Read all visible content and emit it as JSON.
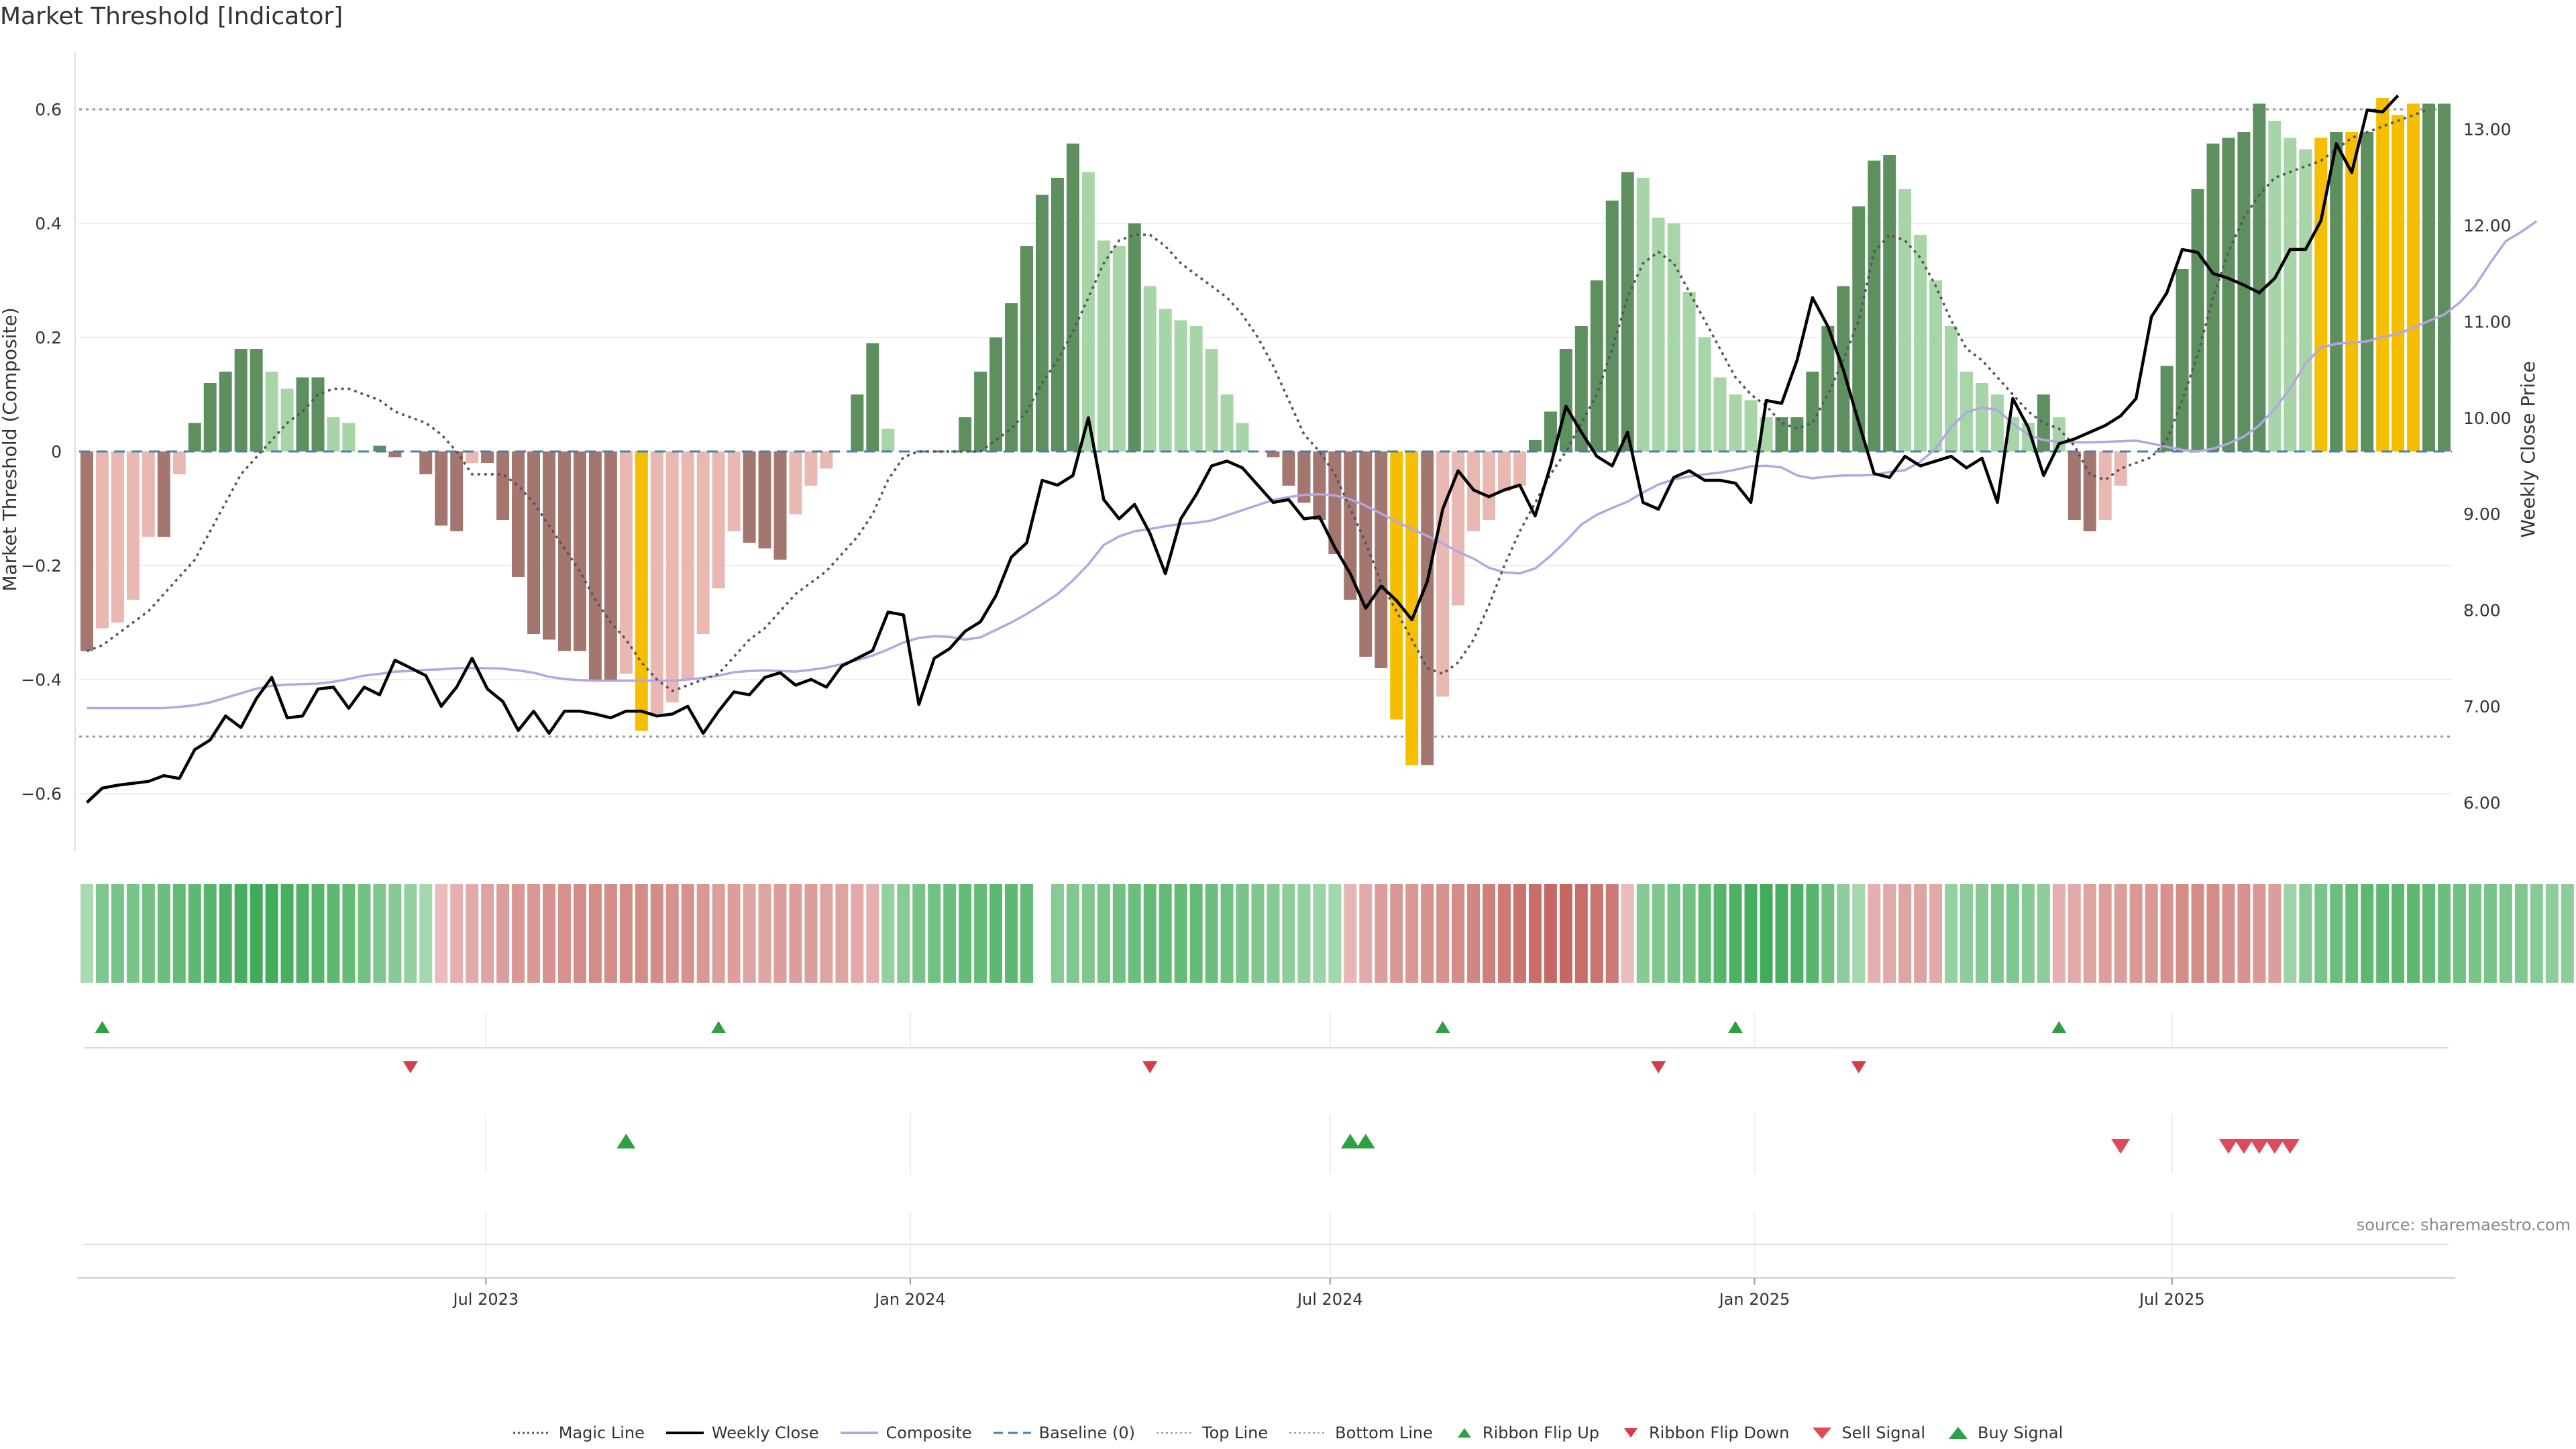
{
  "title": "Market Threshold [Indicator]",
  "source": "source: sharemaestro.com",
  "colors": {
    "strong_pos": "#5e8f5e",
    "weak_pos": "#a8d5a8",
    "strong_neg": "#a37670",
    "weak_neg": "#e9b8b3",
    "signal": "#f5be00",
    "close": "#000000",
    "composite": "#b3a7e0",
    "magic": "#555555",
    "baseline": "#4a7fa7",
    "buy": "#2ea043",
    "sell": "#d73a49"
  },
  "legend": [
    {
      "label": "Magic Line",
      "icon": "dotted-line"
    },
    {
      "label": "Weekly Close",
      "icon": "solid-line"
    },
    {
      "label": "Composite",
      "icon": "composite-line"
    },
    {
      "label": "Baseline (0)",
      "icon": "dashed-line"
    },
    {
      "label": "Top Line",
      "icon": "light-dotted-line"
    },
    {
      "label": "Bottom Line",
      "icon": "light-dotted-line"
    },
    {
      "label": "Ribbon Flip Up",
      "icon": "triangle-up-icon"
    },
    {
      "label": "Ribbon Flip Down",
      "icon": "triangle-down-icon"
    },
    {
      "label": "Sell Signal",
      "icon": "sell-triangle-icon"
    },
    {
      "label": "Buy Signal",
      "icon": "buy-triangle-icon"
    }
  ],
  "chart_data": {
    "type": "bar",
    "ylabel": "Market Threshold (Composite)",
    "y2label": "Weekly Close Price",
    "ylim": [
      -0.7,
      0.7
    ],
    "y2lim": [
      5.5,
      13.8
    ],
    "yticks": [
      "−0.6",
      "−0.4",
      "−0.2",
      "0",
      "0.2",
      "0.4",
      "0.6"
    ],
    "y2ticks": [
      "6.00",
      "7.00",
      "8.00",
      "9.00",
      "10.00",
      "11.00",
      "12.00",
      "13.00"
    ],
    "top_line": 0.6,
    "bottom_line": -0.5,
    "baseline": 0,
    "x_start": "2023-01-09",
    "x_end": "2025-10-27",
    "xticks": [
      {
        "label": "Jul 2023",
        "date": "2023-07-01"
      },
      {
        "label": "Jan 2024",
        "date": "2024-01-01"
      },
      {
        "label": "Jul 2024",
        "date": "2024-07-01"
      },
      {
        "label": "Jan 2025",
        "date": "2025-01-01"
      },
      {
        "label": "Jul 2025",
        "date": "2025-07-01"
      }
    ],
    "composite_bars": [
      -0.35,
      -0.31,
      -0.3,
      -0.26,
      -0.15,
      -0.15,
      -0.04,
      0.05,
      0.12,
      0.14,
      0.18,
      0.18,
      0.14,
      0.11,
      0.13,
      0.13,
      0.06,
      0.05,
      0.0,
      0.01,
      -0.01,
      0.0,
      -0.04,
      -0.13,
      -0.14,
      -0.02,
      -0.02,
      -0.12,
      -0.22,
      -0.32,
      -0.33,
      -0.35,
      -0.35,
      -0.4,
      -0.4,
      -0.39,
      -0.49,
      -0.46,
      -0.44,
      -0.4,
      -0.32,
      -0.24,
      -0.14,
      -0.16,
      -0.17,
      -0.19,
      -0.11,
      -0.06,
      -0.03,
      0.0,
      0.1,
      0.19,
      0.04,
      0.0,
      0.0,
      0.0,
      0.0,
      0.06,
      0.14,
      0.2,
      0.26,
      0.36,
      0.45,
      0.48,
      0.54,
      0.49,
      0.37,
      0.36,
      0.4,
      0.29,
      0.25,
      0.23,
      0.22,
      0.18,
      0.1,
      0.05,
      0.0,
      -0.01,
      -0.06,
      -0.09,
      -0.12,
      -0.18,
      -0.26,
      -0.36,
      -0.38,
      -0.47,
      -0.55,
      -0.55,
      -0.43,
      -0.27,
      -0.14,
      -0.12,
      -0.07,
      -0.06,
      0.02,
      0.07,
      0.18,
      0.22,
      0.3,
      0.44,
      0.49,
      0.48,
      0.41,
      0.4,
      0.28,
      0.2,
      0.13,
      0.1,
      0.09,
      0.06,
      0.06,
      0.06,
      0.14,
      0.22,
      0.29,
      0.43,
      0.51,
      0.52,
      0.46,
      0.38,
      0.3,
      0.22,
      0.14,
      0.12,
      0.1,
      0.06,
      0.05,
      0.1,
      0.06,
      -0.12,
      -0.14,
      -0.12,
      -0.06,
      0.0,
      0.0,
      0.15,
      0.32,
      0.46,
      0.54,
      0.55,
      0.56,
      0.61,
      0.58,
      0.55,
      0.53,
      0.55,
      0.56,
      0.56,
      0.56,
      0.62,
      0.59,
      0.61,
      0.61,
      0.61
    ],
    "signal_bars": [
      36,
      85,
      86,
      145,
      147,
      149,
      150,
      151
    ],
    "weekly_close": [
      6.0,
      6.15,
      6.18,
      6.2,
      6.22,
      6.28,
      6.25,
      6.55,
      6.65,
      6.9,
      6.78,
      7.08,
      7.3,
      6.88,
      6.9,
      7.18,
      7.2,
      6.98,
      7.2,
      7.12,
      7.48,
      7.4,
      7.32,
      7.0,
      7.2,
      7.5,
      7.18,
      7.05,
      6.75,
      6.95,
      6.72,
      6.95,
      6.95,
      6.92,
      6.88,
      6.95,
      6.95,
      6.9,
      6.92,
      7.0,
      6.72,
      6.95,
      7.15,
      7.12,
      7.3,
      7.35,
      7.22,
      7.28,
      7.2,
      7.42,
      7.5,
      7.58,
      7.98,
      7.95,
      7.02,
      7.5,
      7.6,
      7.78,
      7.88,
      8.15,
      8.55,
      8.7,
      9.35,
      9.3,
      9.4,
      10.0,
      9.15,
      8.95,
      9.1,
      8.8,
      8.38,
      8.95,
      9.2,
      9.5,
      9.55,
      9.48,
      9.3,
      9.12,
      9.15,
      8.95,
      8.97,
      8.65,
      8.38,
      8.02,
      8.25,
      8.1,
      7.9,
      8.3,
      9.05,
      9.45,
      9.25,
      9.18,
      9.25,
      9.3,
      8.98,
      9.5,
      10.12,
      9.85,
      9.6,
      9.5,
      9.85,
      9.12,
      9.05,
      9.38,
      9.45,
      9.35,
      9.35,
      9.32,
      9.12,
      10.18,
      10.15,
      10.6,
      11.25,
      10.95,
      10.5,
      9.95,
      9.42,
      9.38,
      9.6,
      9.5,
      9.55,
      9.6,
      9.48,
      9.58,
      9.12,
      10.2,
      9.9,
      9.4,
      9.73,
      9.78,
      9.85,
      9.92,
      10.02,
      10.2,
      11.05,
      11.3,
      11.75,
      11.72,
      11.5,
      11.45,
      11.38,
      11.3,
      11.45,
      11.75,
      11.75,
      12.05,
      12.85,
      12.55,
      13.2,
      13.18,
      13.35
    ],
    "composite_line": [
      -0.45,
      -0.45,
      -0.45,
      -0.45,
      -0.45,
      -0.45,
      -0.448,
      -0.445,
      -0.44,
      -0.432,
      -0.424,
      -0.416,
      -0.411,
      -0.409,
      -0.408,
      -0.407,
      -0.404,
      -0.399,
      -0.393,
      -0.39,
      -0.386,
      -0.385,
      -0.383,
      -0.382,
      -0.38,
      -0.38,
      -0.38,
      -0.381,
      -0.384,
      -0.388,
      -0.395,
      -0.399,
      -0.401,
      -0.402,
      -0.402,
      -0.402,
      -0.402,
      -0.402,
      -0.402,
      -0.4,
      -0.397,
      -0.393,
      -0.387,
      -0.385,
      -0.384,
      -0.385,
      -0.386,
      -0.383,
      -0.379,
      -0.373,
      -0.366,
      -0.358,
      -0.347,
      -0.335,
      -0.327,
      -0.324,
      -0.325,
      -0.33,
      -0.326,
      -0.313,
      -0.3,
      -0.285,
      -0.268,
      -0.25,
      -0.226,
      -0.198,
      -0.164,
      -0.149,
      -0.14,
      -0.136,
      -0.131,
      -0.127,
      -0.125,
      -0.121,
      -0.112,
      -0.103,
      -0.094,
      -0.085,
      -0.08,
      -0.076,
      -0.075,
      -0.077,
      -0.084,
      -0.095,
      -0.109,
      -0.123,
      -0.136,
      -0.148,
      -0.161,
      -0.176,
      -0.188,
      -0.204,
      -0.212,
      -0.214,
      -0.205,
      -0.183,
      -0.157,
      -0.128,
      -0.111,
      -0.099,
      -0.088,
      -0.072,
      -0.058,
      -0.049,
      -0.044,
      -0.04,
      -0.037,
      -0.032,
      -0.026,
      -0.025,
      -0.028,
      -0.042,
      -0.047,
      -0.044,
      -0.042,
      -0.042,
      -0.041,
      -0.036,
      -0.033,
      -0.018,
      0.005,
      0.043,
      0.069,
      0.077,
      0.073,
      0.049,
      0.029,
      0.02,
      0.017,
      0.016,
      0.016,
      0.017,
      0.018,
      0.019,
      0.014,
      0.008,
      0.003,
      0.0,
      0.005,
      0.014,
      0.026,
      0.046,
      0.075,
      0.11,
      0.154,
      0.182,
      0.189,
      0.191,
      0.193,
      0.201,
      0.206,
      0.217,
      0.229,
      0.24,
      0.261,
      0.29,
      0.331,
      0.369,
      0.385,
      0.404
    ],
    "magic_line": [
      -0.35,
      -0.34,
      -0.32,
      -0.3,
      -0.28,
      -0.25,
      -0.22,
      -0.19,
      -0.14,
      -0.09,
      -0.04,
      -0.01,
      0.02,
      0.05,
      0.07,
      0.1,
      0.11,
      0.11,
      0.1,
      0.09,
      0.07,
      0.06,
      0.05,
      0.03,
      0.0,
      -0.04,
      -0.04,
      -0.04,
      -0.06,
      -0.09,
      -0.13,
      -0.17,
      -0.21,
      -0.26,
      -0.3,
      -0.33,
      -0.37,
      -0.4,
      -0.42,
      -0.41,
      -0.4,
      -0.39,
      -0.36,
      -0.33,
      -0.31,
      -0.28,
      -0.25,
      -0.23,
      -0.21,
      -0.18,
      -0.15,
      -0.11,
      -0.05,
      -0.01,
      0.0,
      0.0,
      0.0,
      0.0,
      0.0,
      0.02,
      0.04,
      0.07,
      0.12,
      0.16,
      0.21,
      0.27,
      0.33,
      0.37,
      0.38,
      0.38,
      0.36,
      0.33,
      0.31,
      0.29,
      0.27,
      0.24,
      0.2,
      0.15,
      0.09,
      0.03,
      0.0,
      -0.04,
      -0.1,
      -0.16,
      -0.23,
      -0.28,
      -0.33,
      -0.38,
      -0.39,
      -0.37,
      -0.33,
      -0.27,
      -0.2,
      -0.14,
      -0.09,
      -0.04,
      0.0,
      0.05,
      0.1,
      0.18,
      0.27,
      0.33,
      0.35,
      0.33,
      0.28,
      0.23,
      0.18,
      0.13,
      0.1,
      0.08,
      0.05,
      0.04,
      0.05,
      0.1,
      0.16,
      0.23,
      0.35,
      0.38,
      0.37,
      0.34,
      0.29,
      0.23,
      0.18,
      0.16,
      0.13,
      0.1,
      0.07,
      0.05,
      0.04,
      0.01,
      -0.04,
      -0.05,
      -0.03,
      -0.02,
      -0.01,
      0.02,
      0.09,
      0.17,
      0.27,
      0.35,
      0.41,
      0.45,
      0.48,
      0.49,
      0.5,
      0.51,
      0.53,
      0.55,
      0.56,
      0.57,
      0.58,
      0.59,
      0.6
    ],
    "ribbon_intensity": [
      0.2,
      0.5,
      0.55,
      0.55,
      0.6,
      0.65,
      0.7,
      0.75,
      0.8,
      0.85,
      0.9,
      0.95,
      0.95,
      0.9,
      0.85,
      0.8,
      0.75,
      0.7,
      0.6,
      0.5,
      0.45,
      0.35,
      0.25,
      -0.2,
      -0.3,
      -0.35,
      -0.4,
      -0.45,
      -0.5,
      -0.5,
      -0.55,
      -0.55,
      -0.6,
      -0.6,
      -0.6,
      -0.6,
      -0.6,
      -0.6,
      -0.55,
      -0.55,
      -0.5,
      -0.45,
      -0.45,
      -0.4,
      -0.4,
      -0.45,
      -0.45,
      -0.45,
      -0.4,
      -0.4,
      -0.35,
      -0.3,
      0.35,
      0.45,
      0.55,
      0.6,
      0.65,
      0.7,
      0.7,
      0.75,
      0.75,
      0.7,
      null,
      0.45,
      0.5,
      0.5,
      0.55,
      0.6,
      0.65,
      0.7,
      0.7,
      0.7,
      0.7,
      0.65,
      0.6,
      0.55,
      0.5,
      0.45,
      0.4,
      0.35,
      0.3,
      0.25,
      -0.25,
      -0.35,
      -0.45,
      -0.5,
      -0.5,
      -0.55,
      -0.55,
      -0.6,
      -0.65,
      -0.7,
      -0.75,
      -0.8,
      -0.85,
      -0.9,
      -0.9,
      -0.85,
      -0.8,
      -0.75,
      -0.2,
      0.45,
      0.5,
      0.55,
      0.6,
      0.7,
      0.8,
      0.85,
      0.9,
      0.95,
      0.9,
      0.85,
      0.8,
      0.6,
      0.4,
      0.25,
      -0.3,
      -0.35,
      -0.4,
      -0.4,
      -0.35,
      0.35,
      0.4,
      0.45,
      0.5,
      0.5,
      0.45,
      0.4,
      -0.3,
      -0.35,
      -0.4,
      -0.45,
      -0.45,
      -0.5,
      -0.5,
      -0.55,
      -0.6,
      -0.6,
      -0.6,
      -0.55,
      -0.55,
      -0.5,
      -0.45,
      0.3,
      0.45,
      0.55,
      0.65,
      0.7,
      0.75,
      0.75,
      0.75,
      0.75,
      0.7,
      0.65,
      0.6,
      0.55,
      0.55,
      0.5,
      0.5,
      0.45,
      0.4,
      0.4
    ],
    "ribbon_flip_up": [
      1,
      41,
      88,
      107,
      128
    ],
    "ribbon_flip_down": [
      21,
      69,
      102,
      115
    ],
    "buy_signals": [
      35,
      82,
      83
    ],
    "sell_signals": [
      132,
      139,
      140,
      141,
      142,
      143
    ]
  }
}
